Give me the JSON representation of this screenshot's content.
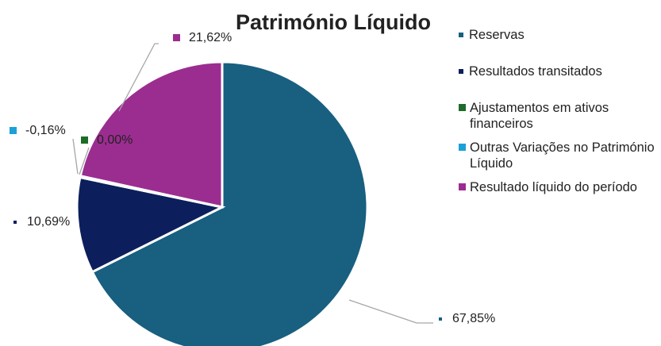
{
  "chart_data": {
    "type": "pie",
    "title": "Património Líquido",
    "categories": [
      "Reservas",
      "Resultados transitados",
      "Ajustamentos em ativos financeiros",
      "Outras Variações no Património Líquido",
      "Resultado líquido do período"
    ],
    "values": [
      67.85,
      10.69,
      0.0,
      -0.16,
      21.62
    ],
    "value_labels": [
      "67,85%",
      "10,69%",
      "0,00%",
      "-0,16%",
      "21,62%"
    ],
    "colors": [
      "#185f80",
      "#0c1f5c",
      "#1e6b28",
      "#1ba1d8",
      "#9b2d90"
    ],
    "legend": "right"
  }
}
